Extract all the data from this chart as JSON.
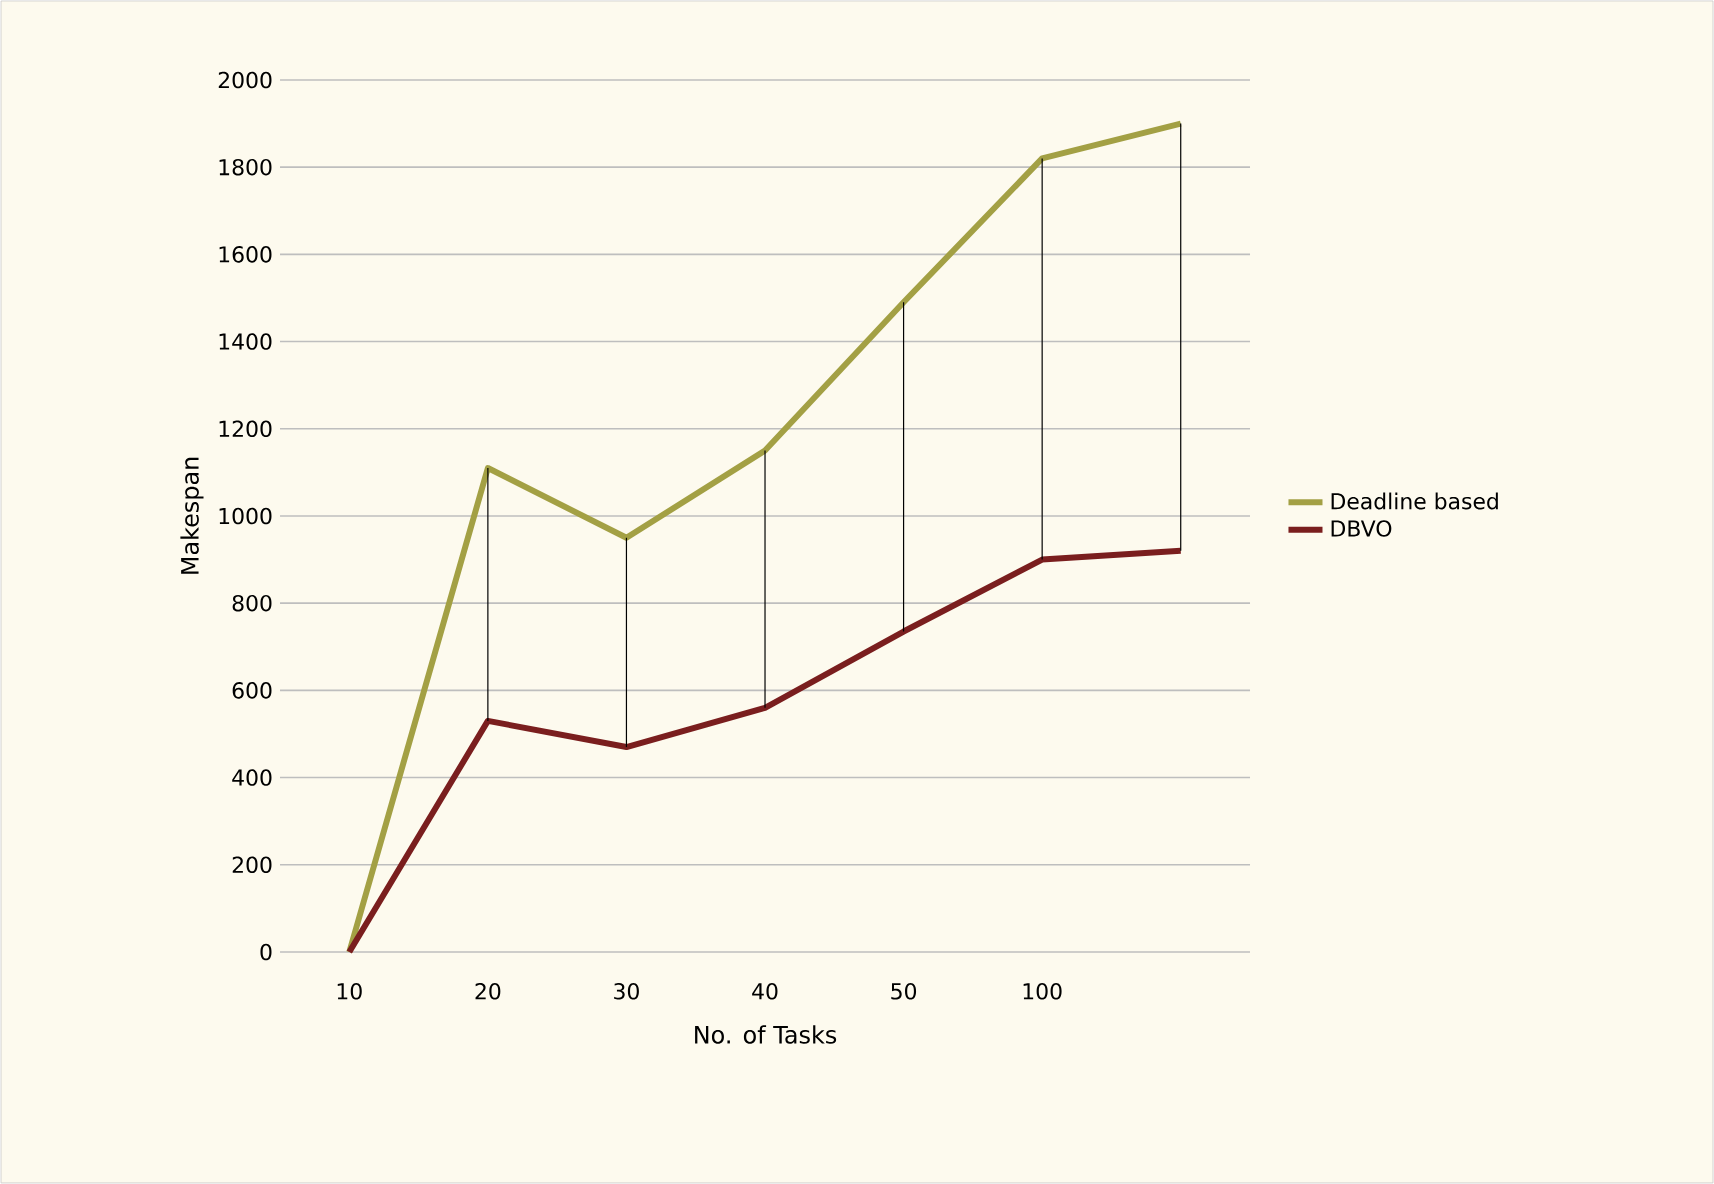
{
  "chart_data": {
    "type": "line",
    "xlabel": "No. of Tasks",
    "ylabel": "Makespan",
    "categories": [
      "10",
      "20",
      "30",
      "40",
      "50",
      "100",
      null
    ],
    "series": [
      {
        "name": "Deadline based",
        "color": "#a3a044",
        "values": [
          0,
          1110,
          950,
          1150,
          1490,
          1820,
          1900
        ]
      },
      {
        "name": "DBVO",
        "color": "#7a1e1e",
        "values": [
          0,
          530,
          470,
          560,
          735,
          900,
          920
        ],
        "errors": [
          null,
          [
            530,
            1110
          ],
          [
            470,
            950
          ],
          [
            560,
            1150
          ],
          [
            735,
            1490
          ],
          [
            900,
            1820
          ],
          [
            920,
            1900
          ]
        ]
      }
    ],
    "ylim": [
      0,
      2000
    ],
    "yticks": [
      0,
      200,
      400,
      600,
      800,
      1000,
      1200,
      1400,
      1600,
      1800,
      2000
    ],
    "grid": "y",
    "legend": "right",
    "marker": "none",
    "line_style": "solid"
  }
}
